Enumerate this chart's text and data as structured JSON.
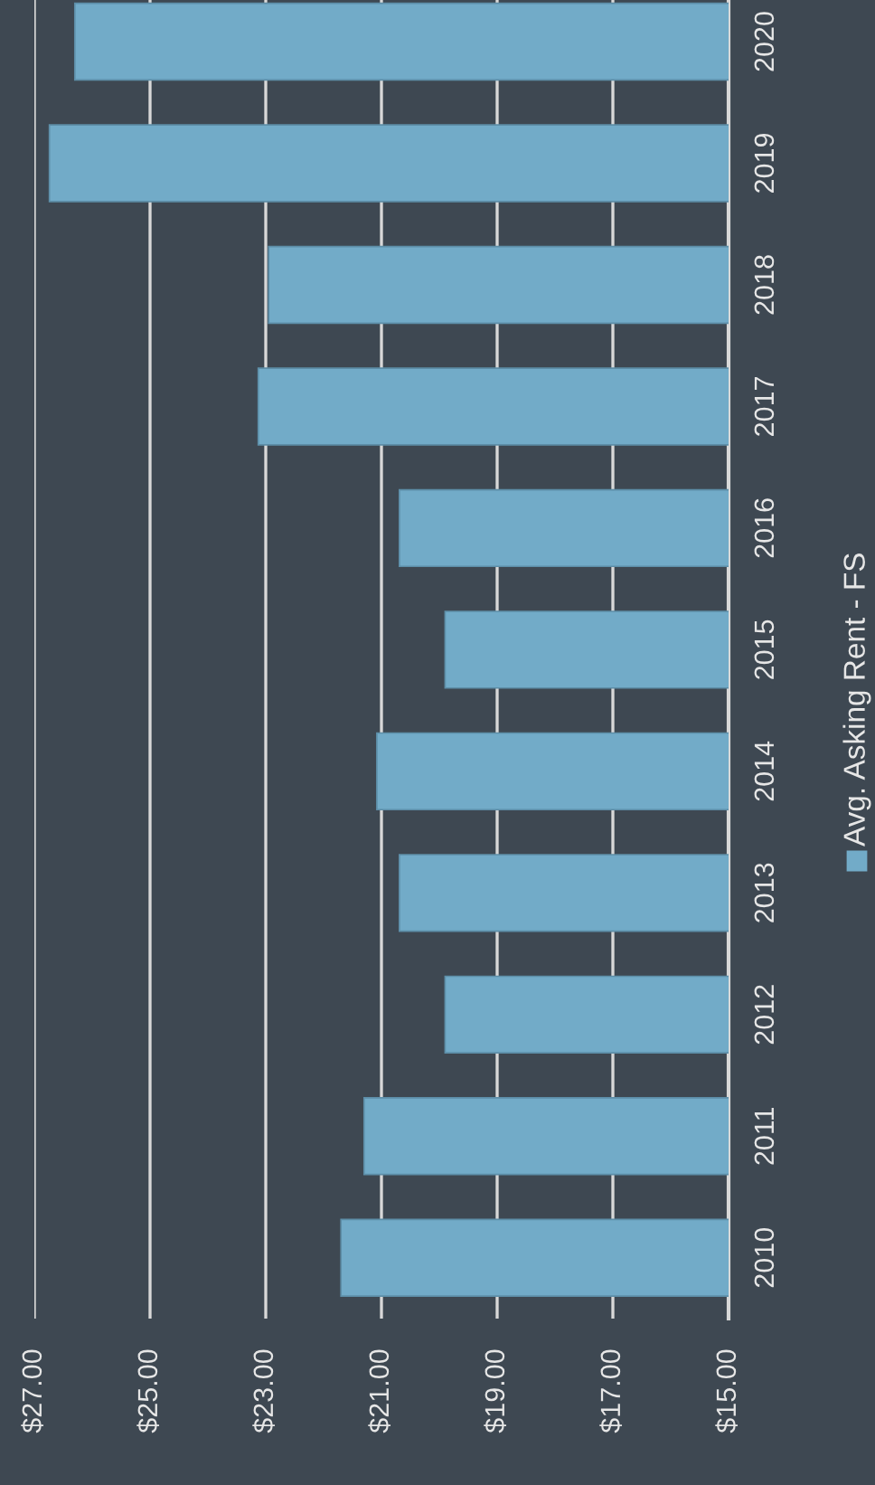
{
  "chart_data": {
    "type": "bar",
    "orientation": "horizontal",
    "categories": [
      "2020",
      "2019",
      "2018",
      "2017",
      "2016",
      "2015",
      "2014",
      "2013",
      "2012",
      "2011",
      "2010"
    ],
    "series": [
      {
        "name": "Avg. Asking Rent - FS",
        "color": "#72abc8",
        "values": [
          26.3,
          26.74,
          22.95,
          23.13,
          20.69,
          19.9,
          21.08,
          20.69,
          19.9,
          21.3,
          21.7
        ]
      }
    ],
    "xlim": [
      27,
      15
    ],
    "xticks": [
      {
        "value": 27,
        "label": "$27.00"
      },
      {
        "value": 25,
        "label": "$25.00"
      },
      {
        "value": 23,
        "label": "$23.00"
      },
      {
        "value": 21,
        "label": "$21.00"
      },
      {
        "value": 19,
        "label": "$19.00"
      },
      {
        "value": 17,
        "label": "$17.00"
      },
      {
        "value": 15,
        "label": "$15.00"
      }
    ],
    "grid": "x",
    "legend": "right"
  }
}
